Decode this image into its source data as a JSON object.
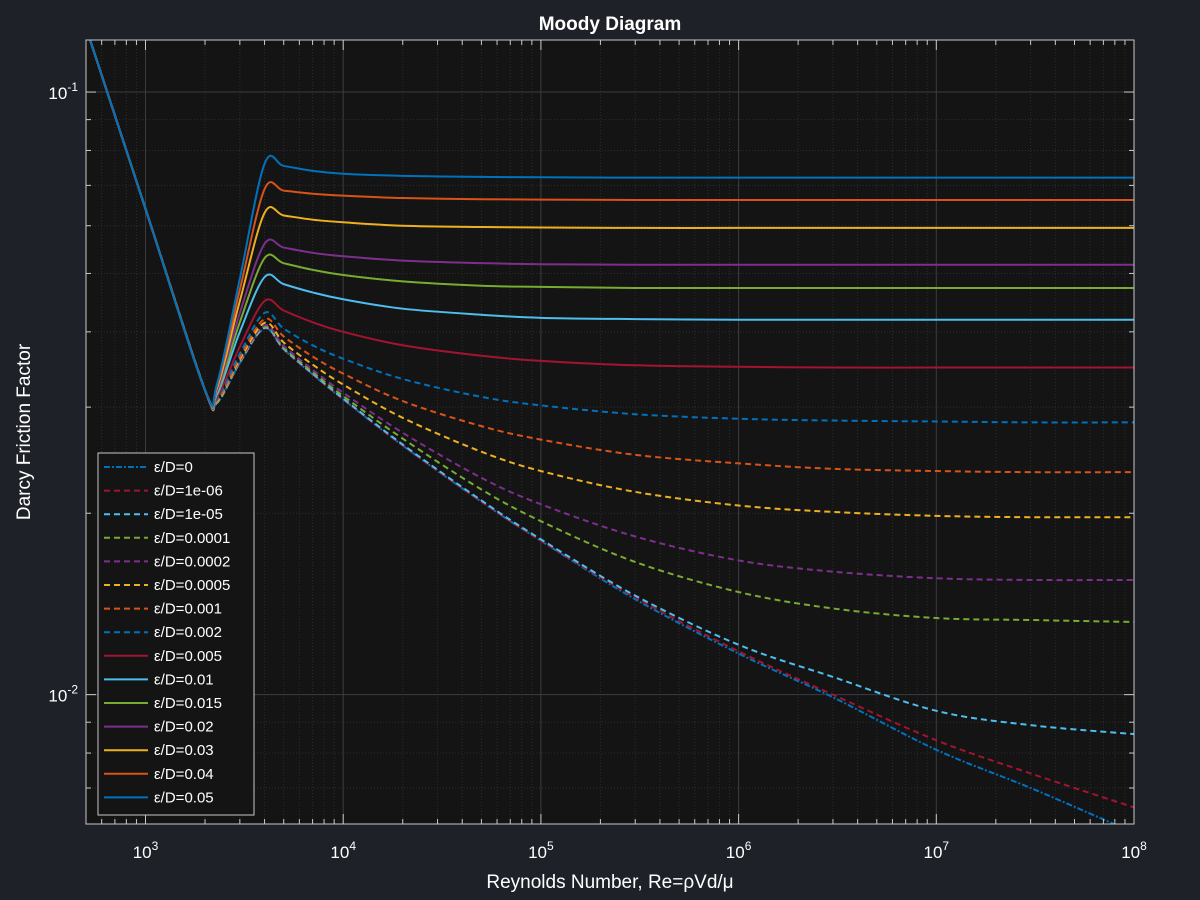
{
  "chart_data": {
    "type": "line",
    "title": "Moody Diagram",
    "xlabel": "Reynolds Number, Re=ρVd/μ",
    "ylabel": "Darcy Friction Factor",
    "xscale": "log",
    "yscale": "log",
    "xlim": [
      500,
      100000000
    ],
    "ylim": [
      0.0061,
      0.122
    ],
    "grid": true,
    "legend_position": "bottom-left",
    "x_ticks": [
      {
        "value": 1000,
        "base": "10",
        "exp": "3"
      },
      {
        "value": 10000,
        "base": "10",
        "exp": "4"
      },
      {
        "value": 100000,
        "base": "10",
        "exp": "5"
      },
      {
        "value": 1000000,
        "base": "10",
        "exp": "6"
      },
      {
        "value": 10000000,
        "base": "10",
        "exp": "7"
      },
      {
        "value": 100000000,
        "base": "10",
        "exp": "8"
      }
    ],
    "y_ticks": [
      {
        "value": 0.1,
        "base": "10",
        "exp": "-1"
      },
      {
        "value": 0.01,
        "base": "10",
        "exp": "-2"
      }
    ],
    "x": [
      500,
      1000,
      2000,
      2300,
      3000,
      4000,
      5000,
      7000,
      10000,
      20000,
      50000,
      100000,
      300000,
      1000000,
      3000000,
      10000000,
      30000000,
      100000000
    ],
    "series": [
      {
        "name": "ε/D=0",
        "color": "#0072bd",
        "dash": "6,2,2,2",
        "values": [
          0.128,
          0.064,
          0.032,
          0.0305,
          0.0355,
          0.0405,
          0.0374,
          0.034,
          0.0309,
          0.0259,
          0.0209,
          0.018,
          0.0144,
          0.0117,
          0.0099,
          0.0081,
          0.007,
          0.0059
        ]
      },
      {
        "name": "ε/D=1e-06",
        "color": "#a2142f",
        "dash": "6,4",
        "values": [
          0.128,
          0.064,
          0.032,
          0.0305,
          0.0355,
          0.0405,
          0.0374,
          0.034,
          0.0309,
          0.0259,
          0.0209,
          0.018,
          0.0145,
          0.0118,
          0.01,
          0.0084,
          0.0074,
          0.0065
        ]
      },
      {
        "name": "ε/D=1e-05",
        "color": "#4dbeee",
        "dash": "6,4",
        "values": [
          0.128,
          0.064,
          0.032,
          0.0305,
          0.0356,
          0.0406,
          0.0375,
          0.0341,
          0.031,
          0.026,
          0.021,
          0.0181,
          0.0146,
          0.0121,
          0.0107,
          0.0094,
          0.0089,
          0.0086
        ]
      },
      {
        "name": "ε/D=0.0001",
        "color": "#77ac30",
        "dash": "6,4",
        "values": [
          0.128,
          0.064,
          0.032,
          0.0306,
          0.0357,
          0.0408,
          0.0377,
          0.0343,
          0.0313,
          0.0266,
          0.0219,
          0.0194,
          0.0166,
          0.0148,
          0.0139,
          0.0134,
          0.0133,
          0.0132
        ]
      },
      {
        "name": "ε/D=0.0002",
        "color": "#7e2f8e",
        "dash": "6,4",
        "values": [
          0.128,
          0.064,
          0.032,
          0.0307,
          0.0358,
          0.041,
          0.0379,
          0.0346,
          0.0317,
          0.0272,
          0.0229,
          0.0207,
          0.0183,
          0.0167,
          0.016,
          0.0156,
          0.0155,
          0.0155
        ]
      },
      {
        "name": "ε/D=0.0005",
        "color": "#edb120",
        "dash": "6,4",
        "values": [
          0.128,
          0.064,
          0.032,
          0.0307,
          0.036,
          0.0414,
          0.0384,
          0.0353,
          0.0327,
          0.0288,
          0.0253,
          0.0235,
          0.0217,
          0.0206,
          0.0201,
          0.0198,
          0.0197,
          0.0197
        ]
      },
      {
        "name": "ε/D=0.001",
        "color": "#d95319",
        "dash": "6,4",
        "values": [
          0.128,
          0.064,
          0.032,
          0.0308,
          0.0363,
          0.042,
          0.0393,
          0.0364,
          0.0341,
          0.0307,
          0.0279,
          0.0265,
          0.025,
          0.0242,
          0.0237,
          0.0235,
          0.0234,
          0.0234
        ]
      },
      {
        "name": "ε/D=0.002",
        "color": "#0072bd",
        "dash": "6,4",
        "values": [
          0.128,
          0.064,
          0.032,
          0.031,
          0.0368,
          0.043,
          0.0405,
          0.038,
          0.0361,
          0.0334,
          0.0312,
          0.0302,
          0.0292,
          0.0287,
          0.0285,
          0.0284,
          0.0283,
          0.0283
        ]
      },
      {
        "name": "ε/D=0.005",
        "color": "#a2142f",
        "dash": "",
        "values": [
          0.128,
          0.064,
          0.032,
          0.0312,
          0.0378,
          0.045,
          0.0434,
          0.0415,
          0.04,
          0.038,
          0.0365,
          0.0358,
          0.0352,
          0.035,
          0.0349,
          0.0349,
          0.0349,
          0.0349
        ]
      },
      {
        "name": "ε/D=0.01",
        "color": "#4dbeee",
        "dash": "",
        "values": [
          0.128,
          0.064,
          0.032,
          0.0315,
          0.04,
          0.0493,
          0.048,
          0.0465,
          0.0453,
          0.0437,
          0.0427,
          0.0422,
          0.042,
          0.0419,
          0.0419,
          0.0419,
          0.0419,
          0.0419
        ]
      },
      {
        "name": "ε/D=0.015",
        "color": "#77ac30",
        "dash": "",
        "values": [
          0.128,
          0.064,
          0.032,
          0.0318,
          0.0415,
          0.053,
          0.052,
          0.0507,
          0.0497,
          0.0485,
          0.0477,
          0.0475,
          0.0473,
          0.0473,
          0.0473,
          0.0473,
          0.0473,
          0.0473
        ]
      },
      {
        "name": "ε/D=0.02",
        "color": "#7e2f8e",
        "dash": "",
        "values": [
          0.128,
          0.064,
          0.032,
          0.032,
          0.043,
          0.056,
          0.0552,
          0.0541,
          0.0534,
          0.0525,
          0.052,
          0.0518,
          0.0517,
          0.0517,
          0.0517,
          0.0517,
          0.0517,
          0.0517
        ]
      },
      {
        "name": "ε/D=0.03",
        "color": "#edb120",
        "dash": "",
        "values": [
          0.128,
          0.064,
          0.032,
          0.0323,
          0.045,
          0.063,
          0.0624,
          0.0614,
          0.0608,
          0.06,
          0.0597,
          0.0596,
          0.0595,
          0.0595,
          0.0595,
          0.0595,
          0.0595,
          0.0595
        ]
      },
      {
        "name": "ε/D=0.04",
        "color": "#d95319",
        "dash": "",
        "values": [
          0.128,
          0.064,
          0.032,
          0.0326,
          0.047,
          0.069,
          0.0686,
          0.0678,
          0.0673,
          0.0667,
          0.0664,
          0.0663,
          0.0662,
          0.0662,
          0.0662,
          0.0662,
          0.0662,
          0.0662
        ]
      },
      {
        "name": "ε/D=0.05",
        "color": "#0072bd",
        "dash": "",
        "values": [
          0.128,
          0.064,
          0.032,
          0.0328,
          0.049,
          0.076,
          0.0754,
          0.074,
          0.0732,
          0.0726,
          0.0723,
          0.0722,
          0.0721,
          0.0721,
          0.0721,
          0.0721,
          0.0721,
          0.0721
        ]
      }
    ]
  }
}
